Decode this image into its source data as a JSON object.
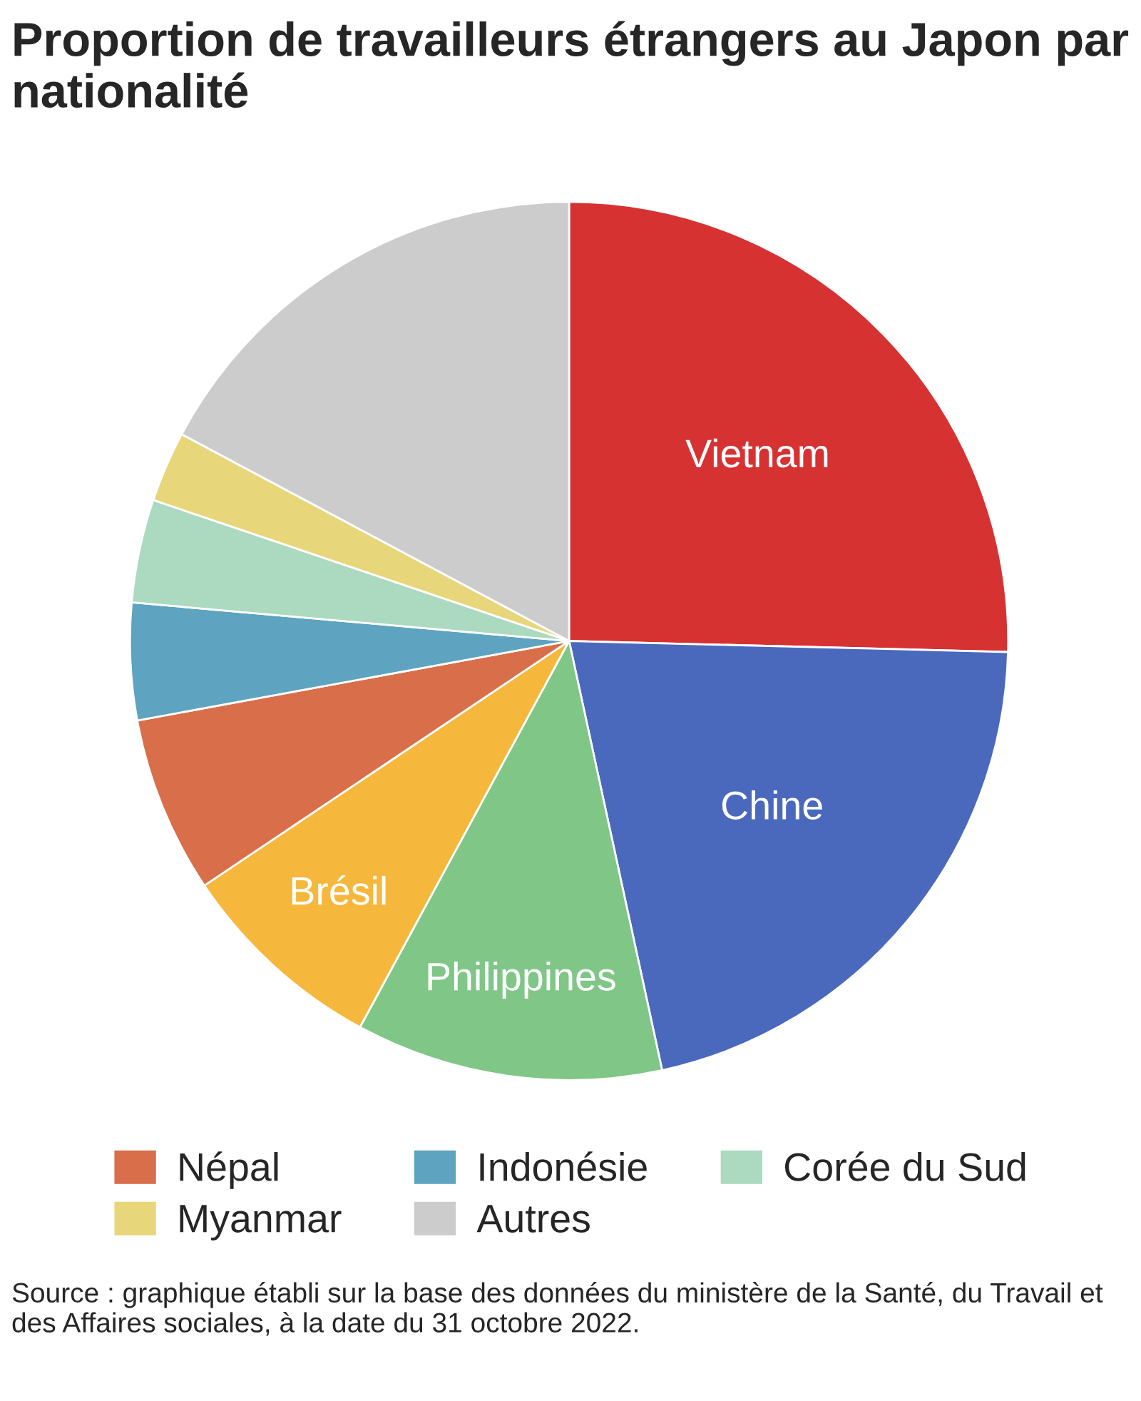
{
  "chart_data": {
    "type": "pie",
    "title": "Proportion de travailleurs étrangers au Japon par nationalité",
    "categories": [
      "Vietnam",
      "Chine",
      "Philippines",
      "Brésil",
      "Népal",
      "Indonésie",
      "Corée du Sud",
      "Myanmar",
      "Autres"
    ],
    "values": [
      25.4,
      21.2,
      11.3,
      7.7,
      6.5,
      4.3,
      3.8,
      2.6,
      17.2
    ],
    "colors": [
      "#d73232",
      "#4a69bd",
      "#80c687",
      "#f5b83d",
      "#d96e4a",
      "#5ea3bf",
      "#acdac0",
      "#e8d67a",
      "#cccccc"
    ],
    "legend": "bottom",
    "annotations": [
      "Source : graphique établi sur la base des données du ministère de la Santé, du Travail et des Affaires sociales, à la date du 31 octobre 2022."
    ]
  }
}
